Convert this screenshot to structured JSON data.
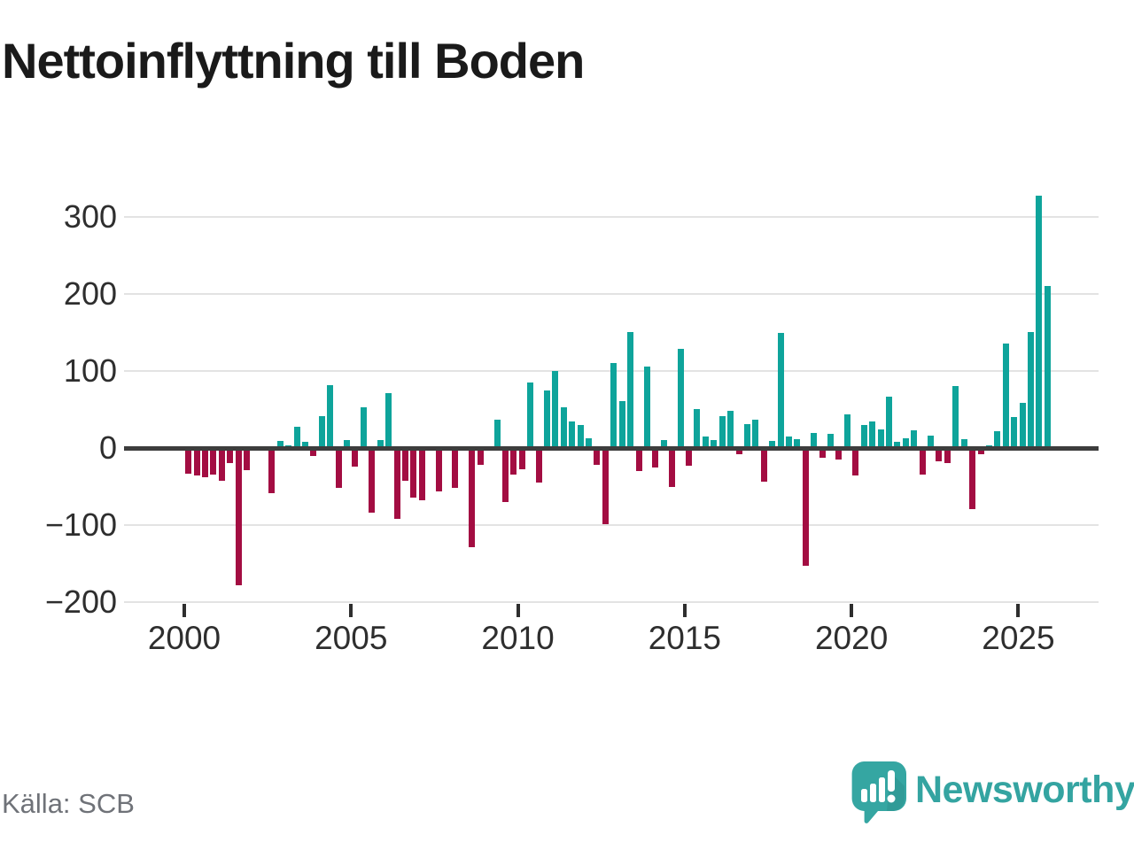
{
  "header": {
    "title": "Nettoinflyttning till Boden"
  },
  "footer": {
    "source": "Källa: SCB",
    "brand": "Newsworthy",
    "brand_icon": "newsworthy-speech-bubble-bar-chart-icon"
  },
  "colors": {
    "positive": "#0ea49b",
    "negative": "#a30d42",
    "zero_line": "#3d3d3d",
    "gridline": "#e3e3e3",
    "axis_text": "#2e2e2e",
    "title_text": "#1a1a1a",
    "source_text": "#6f7278",
    "brand_teal": "#34a4a1"
  },
  "chart_data": {
    "type": "bar",
    "title": "Nettoinflyttning till Boden",
    "x_unit": "quarter",
    "start_period": "2000 Q1",
    "end_period": "2025 Q4",
    "xticks": [
      2000,
      2005,
      2010,
      2015,
      2020,
      2025
    ],
    "yticks": [
      300,
      200,
      100,
      0,
      -100,
      -200
    ],
    "ylim": [
      -200,
      330
    ],
    "grid": true,
    "legend": false,
    "values": [
      -31,
      -33,
      -36,
      -32,
      -40,
      -17,
      -175,
      -26,
      0,
      0,
      -56,
      9,
      4,
      27,
      8,
      -8,
      41,
      82,
      -49,
      10,
      -22,
      53,
      -82,
      10,
      71,
      -90,
      -40,
      -62,
      -65,
      0,
      -54,
      0,
      -49,
      0,
      -126,
      -19,
      0,
      37,
      -68,
      -32,
      -25,
      85,
      -42,
      75,
      100,
      53,
      34,
      30,
      13,
      -19,
      -96,
      110,
      61,
      150,
      -28,
      105,
      -23,
      10,
      -48,
      129,
      -21,
      50,
      15,
      10,
      41,
      48,
      -6,
      31,
      37,
      -41,
      9,
      149,
      15,
      12,
      -150,
      20,
      -10,
      18,
      -13,
      44,
      -33,
      30,
      34,
      24,
      67,
      8,
      13,
      23,
      -32,
      16,
      -15,
      -17,
      80,
      11,
      -77,
      -6,
      4,
      22,
      135,
      40,
      59,
      150,
      327,
      210
    ]
  }
}
